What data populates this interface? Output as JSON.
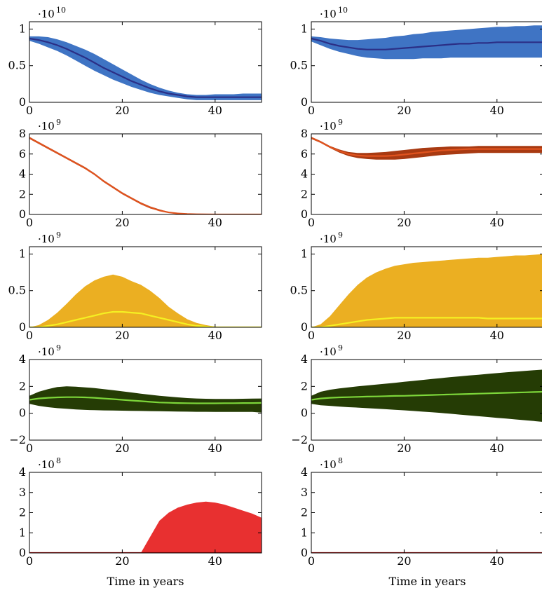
{
  "chart_data": [
    {
      "type": "area",
      "panel": "row1-left",
      "xlim": [
        0,
        50
      ],
      "ylim": [
        0,
        1.1
      ],
      "yticks": [
        0,
        0.5,
        1
      ],
      "yticklabels": [
        "0",
        "0.5",
        "1"
      ],
      "xticks": [
        0,
        20,
        40
      ],
      "xticklabels": [
        "0",
        "20",
        "40"
      ],
      "multiplier_base": "·10",
      "multiplier_exp": "10",
      "fill_color": "#3f74c4",
      "line_color": "#2b2f86",
      "x": [
        0,
        2,
        4,
        6,
        8,
        10,
        12,
        14,
        16,
        18,
        20,
        22,
        24,
        26,
        28,
        30,
        32,
        34,
        36,
        38,
        40,
        42,
        44,
        46,
        48,
        50
      ],
      "mean": [
        0.87,
        0.85,
        0.82,
        0.78,
        0.73,
        0.67,
        0.61,
        0.54,
        0.47,
        0.41,
        0.35,
        0.29,
        0.24,
        0.19,
        0.15,
        0.12,
        0.1,
        0.08,
        0.07,
        0.07,
        0.07,
        0.07,
        0.07,
        0.07,
        0.07,
        0.07
      ],
      "upper": [
        0.9,
        0.9,
        0.89,
        0.86,
        0.82,
        0.77,
        0.72,
        0.66,
        0.59,
        0.52,
        0.45,
        0.38,
        0.31,
        0.25,
        0.2,
        0.16,
        0.13,
        0.11,
        0.1,
        0.1,
        0.11,
        0.11,
        0.11,
        0.12,
        0.12,
        0.12
      ],
      "lower": [
        0.84,
        0.8,
        0.75,
        0.7,
        0.64,
        0.57,
        0.5,
        0.43,
        0.37,
        0.31,
        0.26,
        0.21,
        0.17,
        0.13,
        0.1,
        0.08,
        0.06,
        0.04,
        0.03,
        0.03,
        0.03,
        0.03,
        0.03,
        0.03,
        0.03,
        0.03
      ]
    },
    {
      "type": "area",
      "panel": "row1-right",
      "xlim": [
        0,
        50
      ],
      "ylim": [
        0,
        1.1
      ],
      "yticks": [
        0,
        0.5,
        1
      ],
      "yticklabels": [
        "0",
        "0.5",
        "1"
      ],
      "xticks": [
        0,
        20,
        40
      ],
      "xticklabels": [
        "0",
        "20",
        "40"
      ],
      "multiplier_base": "·10",
      "multiplier_exp": "10",
      "fill_color": "#3f74c4",
      "line_color": "#2b2f86",
      "x": [
        0,
        2,
        4,
        6,
        8,
        10,
        12,
        14,
        16,
        18,
        20,
        22,
        24,
        26,
        28,
        30,
        32,
        34,
        36,
        38,
        40,
        42,
        44,
        46,
        48,
        50
      ],
      "mean": [
        0.87,
        0.84,
        0.8,
        0.77,
        0.75,
        0.73,
        0.72,
        0.72,
        0.72,
        0.73,
        0.74,
        0.75,
        0.76,
        0.77,
        0.78,
        0.79,
        0.8,
        0.8,
        0.81,
        0.81,
        0.82,
        0.82,
        0.82,
        0.82,
        0.82,
        0.82
      ],
      "upper": [
        0.9,
        0.89,
        0.87,
        0.86,
        0.85,
        0.85,
        0.86,
        0.87,
        0.88,
        0.9,
        0.91,
        0.93,
        0.94,
        0.96,
        0.97,
        0.98,
        0.99,
        1.0,
        1.01,
        1.02,
        1.03,
        1.03,
        1.04,
        1.04,
        1.05,
        1.05
      ],
      "lower": [
        0.83,
        0.78,
        0.73,
        0.69,
        0.66,
        0.63,
        0.61,
        0.6,
        0.59,
        0.59,
        0.59,
        0.59,
        0.6,
        0.6,
        0.6,
        0.61,
        0.61,
        0.61,
        0.61,
        0.61,
        0.61,
        0.61,
        0.61,
        0.61,
        0.61,
        0.61
      ]
    },
    {
      "type": "line",
      "panel": "row2-left",
      "xlim": [
        0,
        50
      ],
      "ylim": [
        0,
        8
      ],
      "yticks": [
        0,
        2,
        4,
        6,
        8
      ],
      "yticklabels": [
        "0",
        "2",
        "4",
        "6",
        "8"
      ],
      "xticks": [
        0,
        20,
        40
      ],
      "xticklabels": [
        "0",
        "20",
        "40"
      ],
      "multiplier_base": "·10",
      "multiplier_exp": "9",
      "fill_color": "#a83a12",
      "line_color": "#e0531e",
      "x": [
        0,
        2,
        4,
        6,
        8,
        10,
        12,
        14,
        16,
        18,
        20,
        22,
        24,
        26,
        28,
        30,
        32,
        34,
        36,
        38,
        40,
        42,
        44,
        46,
        48,
        50
      ],
      "mean": [
        7.6,
        7.1,
        6.6,
        6.1,
        5.6,
        5.1,
        4.6,
        4.0,
        3.3,
        2.7,
        2.1,
        1.6,
        1.1,
        0.7,
        0.4,
        0.2,
        0.1,
        0.05,
        0.02,
        0.01,
        0,
        0,
        0,
        0,
        0,
        0
      ],
      "upper": [
        7.7,
        7.2,
        6.7,
        6.2,
        5.7,
        5.2,
        4.7,
        4.1,
        3.4,
        2.8,
        2.2,
        1.7,
        1.2,
        0.8,
        0.5,
        0.25,
        0.12,
        0.06,
        0.03,
        0.01,
        0,
        0,
        0,
        0,
        0,
        0
      ],
      "lower": [
        7.5,
        7.0,
        6.5,
        6.0,
        5.5,
        5.0,
        4.5,
        3.9,
        3.2,
        2.6,
        2.0,
        1.5,
        1.0,
        0.6,
        0.35,
        0.15,
        0.08,
        0.04,
        0.01,
        0,
        0,
        0,
        0,
        0,
        0,
        0
      ]
    },
    {
      "type": "area",
      "panel": "row2-right",
      "xlim": [
        0,
        50
      ],
      "ylim": [
        0,
        8
      ],
      "yticks": [
        0,
        2,
        4,
        6,
        8
      ],
      "yticklabels": [
        "0",
        "2",
        "4",
        "6",
        "8"
      ],
      "xticks": [
        0,
        20,
        40
      ],
      "xticklabels": [
        "0",
        "20",
        "40"
      ],
      "multiplier_base": "·10",
      "multiplier_exp": "9",
      "fill_color": "#a83a12",
      "line_color": "#e0531e",
      "x": [
        0,
        2,
        4,
        6,
        8,
        10,
        12,
        14,
        16,
        18,
        20,
        22,
        24,
        26,
        28,
        30,
        32,
        34,
        36,
        38,
        40,
        42,
        44,
        46,
        48,
        50
      ],
      "mean": [
        7.6,
        7.2,
        6.7,
        6.3,
        6.0,
        5.85,
        5.8,
        5.8,
        5.8,
        5.85,
        5.95,
        6.05,
        6.15,
        6.25,
        6.35,
        6.4,
        6.45,
        6.5,
        6.5,
        6.5,
        6.5,
        6.5,
        6.5,
        6.5,
        6.5,
        6.5
      ],
      "upper": [
        7.7,
        7.3,
        6.8,
        6.45,
        6.2,
        6.1,
        6.1,
        6.15,
        6.2,
        6.3,
        6.4,
        6.5,
        6.6,
        6.65,
        6.7,
        6.75,
        6.75,
        6.75,
        6.8,
        6.8,
        6.8,
        6.8,
        6.8,
        6.8,
        6.8,
        6.8
      ],
      "lower": [
        7.5,
        7.1,
        6.6,
        6.15,
        5.8,
        5.6,
        5.5,
        5.45,
        5.45,
        5.45,
        5.5,
        5.6,
        5.7,
        5.8,
        5.9,
        5.95,
        6.0,
        6.05,
        6.1,
        6.1,
        6.1,
        6.1,
        6.1,
        6.1,
        6.1,
        6.1
      ]
    },
    {
      "type": "area",
      "panel": "row3-left",
      "xlim": [
        0,
        50
      ],
      "ylim": [
        0,
        1.1
      ],
      "yticks": [
        0,
        0.5,
        1
      ],
      "yticklabels": [
        "0",
        "0.5",
        "1"
      ],
      "xticks": [
        0,
        20,
        40
      ],
      "xticklabels": [
        "0",
        "20",
        "40"
      ],
      "multiplier_base": "·10",
      "multiplier_exp": "9",
      "fill_color": "#ebaf22",
      "line_color": "#f5f022",
      "x": [
        0,
        2,
        4,
        6,
        8,
        10,
        12,
        14,
        16,
        18,
        20,
        22,
        24,
        26,
        28,
        30,
        32,
        34,
        36,
        38,
        40,
        42,
        44,
        46,
        48,
        50
      ],
      "mean": [
        0,
        0,
        0.02,
        0.04,
        0.07,
        0.1,
        0.13,
        0.16,
        0.19,
        0.21,
        0.21,
        0.2,
        0.19,
        0.16,
        0.13,
        0.1,
        0.07,
        0.04,
        0.02,
        0.01,
        0,
        0,
        0,
        0,
        0,
        0
      ],
      "upper": [
        0,
        0.03,
        0.1,
        0.2,
        0.32,
        0.45,
        0.56,
        0.64,
        0.69,
        0.72,
        0.69,
        0.63,
        0.58,
        0.5,
        0.4,
        0.28,
        0.19,
        0.11,
        0.06,
        0.03,
        0.01,
        0,
        0,
        0,
        0,
        0
      ],
      "lower": [
        0,
        0,
        0,
        0,
        0,
        0,
        0,
        0,
        0,
        0,
        0,
        0,
        0,
        0,
        0,
        0,
        0,
        0,
        0,
        0,
        0,
        0,
        0,
        0,
        0,
        0
      ]
    },
    {
      "type": "area",
      "panel": "row3-right",
      "xlim": [
        0,
        50
      ],
      "ylim": [
        0,
        1.1
      ],
      "yticks": [
        0,
        0.5,
        1
      ],
      "yticklabels": [
        "0",
        "0.5",
        "1"
      ],
      "xticks": [
        0,
        20,
        40
      ],
      "xticklabels": [
        "0",
        "20",
        "40"
      ],
      "multiplier_base": "·10",
      "multiplier_exp": "9",
      "fill_color": "#ebaf22",
      "line_color": "#f5f022",
      "x": [
        0,
        2,
        4,
        6,
        8,
        10,
        12,
        14,
        16,
        18,
        20,
        22,
        24,
        26,
        28,
        30,
        32,
        34,
        36,
        38,
        40,
        42,
        44,
        46,
        48,
        50
      ],
      "mean": [
        0,
        0,
        0.02,
        0.04,
        0.06,
        0.08,
        0.1,
        0.11,
        0.12,
        0.13,
        0.13,
        0.13,
        0.13,
        0.13,
        0.13,
        0.13,
        0.13,
        0.13,
        0.13,
        0.12,
        0.12,
        0.12,
        0.12,
        0.12,
        0.12,
        0.12
      ],
      "upper": [
        0,
        0.04,
        0.15,
        0.3,
        0.45,
        0.58,
        0.68,
        0.75,
        0.8,
        0.84,
        0.86,
        0.88,
        0.89,
        0.9,
        0.91,
        0.92,
        0.93,
        0.94,
        0.95,
        0.95,
        0.96,
        0.97,
        0.98,
        0.98,
        0.99,
        1.0
      ],
      "lower": [
        0,
        0,
        0,
        0,
        0,
        0,
        0,
        0,
        0,
        0,
        0,
        0,
        0,
        0,
        0,
        0,
        0,
        0,
        0,
        0,
        0,
        0,
        0,
        0,
        0,
        0
      ]
    },
    {
      "type": "area",
      "panel": "row4-left",
      "xlim": [
        0,
        50
      ],
      "ylim": [
        -2,
        4
      ],
      "yticks": [
        -2,
        0,
        2,
        4
      ],
      "yticklabels": [
        "−2",
        "0",
        "2",
        "4"
      ],
      "xticks": [
        0,
        20,
        40
      ],
      "xticklabels": [
        "0",
        "20",
        "40"
      ],
      "multiplier_base": "·10",
      "multiplier_exp": "9",
      "fill_color": "#253c05",
      "line_color": "#7dd63a",
      "x": [
        0,
        2,
        4,
        6,
        8,
        10,
        12,
        14,
        16,
        18,
        20,
        22,
        24,
        26,
        28,
        30,
        32,
        34,
        36,
        38,
        40,
        42,
        44,
        46,
        48,
        50
      ],
      "mean": [
        1.0,
        1.1,
        1.15,
        1.18,
        1.2,
        1.2,
        1.18,
        1.15,
        1.1,
        1.05,
        1.0,
        0.95,
        0.9,
        0.85,
        0.8,
        0.78,
        0.76,
        0.75,
        0.74,
        0.74,
        0.74,
        0.75,
        0.75,
        0.76,
        0.76,
        0.77
      ],
      "upper": [
        1.3,
        1.6,
        1.8,
        1.95,
        2.0,
        1.98,
        1.93,
        1.87,
        1.8,
        1.72,
        1.63,
        1.55,
        1.46,
        1.38,
        1.3,
        1.24,
        1.18,
        1.13,
        1.1,
        1.08,
        1.07,
        1.07,
        1.07,
        1.08,
        1.09,
        1.1
      ],
      "lower": [
        0.7,
        0.55,
        0.45,
        0.38,
        0.33,
        0.28,
        0.25,
        0.23,
        0.21,
        0.2,
        0.19,
        0.18,
        0.17,
        0.16,
        0.15,
        0.14,
        0.13,
        0.12,
        0.11,
        0.11,
        0.1,
        0.1,
        0.1,
        0.1,
        0.1,
        0.05
      ]
    },
    {
      "type": "area",
      "panel": "row4-right",
      "xlim": [
        0,
        50
      ],
      "ylim": [
        -2,
        4
      ],
      "yticks": [
        -2,
        0,
        2,
        4
      ],
      "yticklabels": [
        "−2",
        "0",
        "2",
        "4"
      ],
      "xticks": [
        0,
        20,
        40
      ],
      "xticklabels": [
        "0",
        "20",
        "40"
      ],
      "multiplier_base": "·10",
      "multiplier_exp": "9",
      "fill_color": "#253c05",
      "line_color": "#7dd63a",
      "x": [
        0,
        2,
        4,
        6,
        8,
        10,
        12,
        14,
        16,
        18,
        20,
        22,
        24,
        26,
        28,
        30,
        32,
        34,
        36,
        38,
        40,
        42,
        44,
        46,
        48,
        50
      ],
      "mean": [
        1.0,
        1.1,
        1.15,
        1.18,
        1.2,
        1.22,
        1.24,
        1.25,
        1.27,
        1.29,
        1.3,
        1.32,
        1.34,
        1.36,
        1.38,
        1.4,
        1.42,
        1.44,
        1.46,
        1.48,
        1.5,
        1.52,
        1.54,
        1.56,
        1.58,
        1.6
      ],
      "upper": [
        1.3,
        1.6,
        1.75,
        1.85,
        1.93,
        2.0,
        2.07,
        2.13,
        2.2,
        2.27,
        2.34,
        2.41,
        2.48,
        2.55,
        2.62,
        2.69,
        2.75,
        2.81,
        2.87,
        2.93,
        2.99,
        3.05,
        3.1,
        3.15,
        3.2,
        3.25
      ],
      "lower": [
        0.7,
        0.6,
        0.55,
        0.5,
        0.45,
        0.42,
        0.38,
        0.34,
        0.3,
        0.26,
        0.22,
        0.17,
        0.12,
        0.07,
        0.02,
        -0.04,
        -0.1,
        -0.16,
        -0.22,
        -0.28,
        -0.34,
        -0.4,
        -0.46,
        -0.52,
        -0.58,
        -0.65
      ]
    },
    {
      "type": "area",
      "panel": "row5-left",
      "xlim": [
        0,
        50
      ],
      "ylim": [
        0,
        4
      ],
      "yticks": [
        0,
        1,
        2,
        3,
        4
      ],
      "yticklabels": [
        "0",
        "1",
        "2",
        "3",
        "4"
      ],
      "xticks": [
        0,
        20,
        40
      ],
      "xticklabels": [
        "0",
        "20",
        "40"
      ],
      "multiplier_base": "·10",
      "multiplier_exp": "8",
      "fill_color": "#e83030",
      "line_color": "#b01010",
      "x": [
        0,
        2,
        4,
        6,
        8,
        10,
        12,
        14,
        16,
        18,
        20,
        22,
        24,
        26,
        28,
        30,
        32,
        34,
        36,
        38,
        40,
        42,
        44,
        46,
        48,
        50
      ],
      "mean": [
        0,
        0,
        0,
        0,
        0,
        0,
        0,
        0,
        0,
        0,
        0,
        0,
        0,
        0,
        0,
        0,
        0,
        0,
        0,
        0,
        0,
        0,
        0,
        0,
        0,
        0
      ],
      "upper": [
        0,
        0,
        0,
        0,
        0,
        0,
        0,
        0,
        0,
        0,
        0,
        0,
        0,
        0.8,
        1.6,
        2.0,
        2.25,
        2.4,
        2.5,
        2.55,
        2.5,
        2.4,
        2.25,
        2.1,
        1.95,
        1.75
      ],
      "lower": [
        0,
        0,
        0,
        0,
        0,
        0,
        0,
        0,
        0,
        0,
        0,
        0,
        0,
        0,
        0,
        0,
        0,
        0,
        0,
        0,
        0,
        0,
        0,
        0,
        0,
        0
      ],
      "xlabel": "Time in years"
    },
    {
      "type": "area",
      "panel": "row5-right",
      "xlim": [
        0,
        50
      ],
      "ylim": [
        0,
        4
      ],
      "yticks": [
        0,
        1,
        2,
        3,
        4
      ],
      "yticklabels": [
        "0",
        "1",
        "2",
        "3",
        "4"
      ],
      "xticks": [
        0,
        20,
        40
      ],
      "xticklabels": [
        "0",
        "20",
        "40"
      ],
      "multiplier_base": "·10",
      "multiplier_exp": "8",
      "fill_color": "#e83030",
      "line_color": "#b01010",
      "x": [
        0,
        2,
        4,
        6,
        8,
        10,
        12,
        14,
        16,
        18,
        20,
        22,
        24,
        26,
        28,
        30,
        32,
        34,
        36,
        38,
        40,
        42,
        44,
        46,
        48,
        50
      ],
      "mean": [
        0,
        0,
        0,
        0,
        0,
        0,
        0,
        0,
        0,
        0,
        0,
        0,
        0,
        0,
        0,
        0,
        0,
        0,
        0,
        0,
        0,
        0,
        0,
        0,
        0,
        0
      ],
      "upper": [
        0,
        0,
        0,
        0,
        0,
        0,
        0,
        0,
        0,
        0,
        0,
        0,
        0,
        0,
        0,
        0,
        0,
        0,
        0,
        0,
        0,
        0,
        0,
        0,
        0,
        0
      ],
      "lower": [
        0,
        0,
        0,
        0,
        0,
        0,
        0,
        0,
        0,
        0,
        0,
        0,
        0,
        0,
        0,
        0,
        0,
        0,
        0,
        0,
        0,
        0,
        0,
        0,
        0,
        0
      ],
      "xlabel": "Time in years"
    }
  ]
}
